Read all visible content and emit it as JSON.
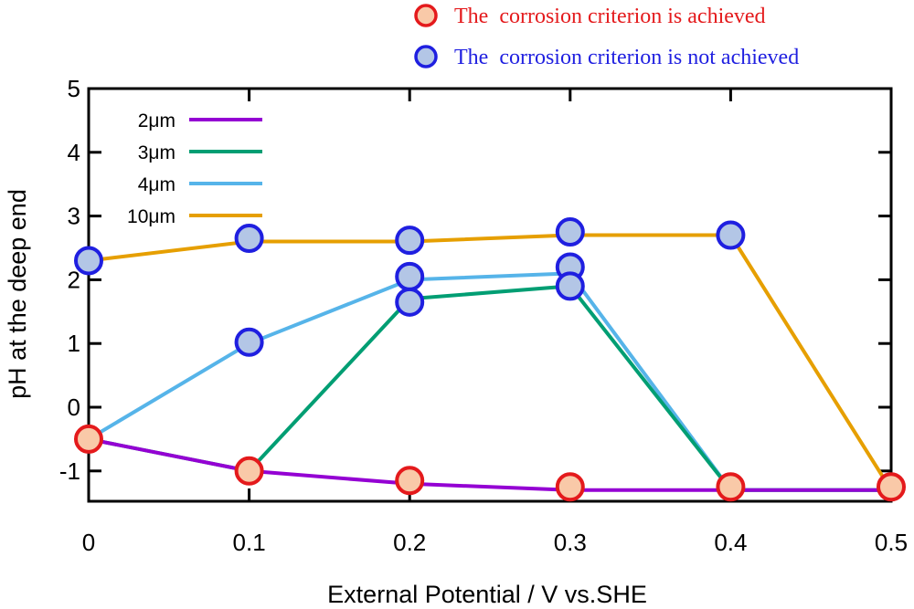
{
  "chart_data": {
    "type": "line",
    "xlabel": "External Potential / V vs.SHE",
    "ylabel": "pH at the deep end",
    "xlim": [
      0,
      0.5
    ],
    "ylim": [
      -1.5,
      5
    ],
    "xticks": [
      "0",
      "0.1",
      "0.2",
      "0.3",
      "0.4",
      "0.5"
    ],
    "yticks": [
      "5",
      "4",
      "3",
      "2",
      "1",
      "0",
      "-1"
    ],
    "series": [
      {
        "name": "2μm",
        "color": "#9400d3",
        "x": [
          0,
          0.1,
          0.2,
          0.3,
          0.4,
          0.5
        ],
        "y": [
          -0.5,
          -1.0,
          -1.2,
          -1.3,
          -1.3,
          -1.3
        ]
      },
      {
        "name": "3μm",
        "color": "#009e73",
        "x": [
          0,
          0.1,
          0.2,
          0.3,
          0.4,
          0.5
        ],
        "y": [
          -0.5,
          -1.0,
          1.7,
          1.9,
          -1.3,
          -1.3
        ]
      },
      {
        "name": "4μm",
        "color": "#56b4e9",
        "x": [
          0,
          0.1,
          0.2,
          0.3,
          0.4,
          0.5
        ],
        "y": [
          -0.5,
          1.0,
          2.0,
          2.1,
          -1.3,
          -1.3
        ]
      },
      {
        "name": "10μm",
        "color": "#e69f00",
        "x": [
          0,
          0.1,
          0.2,
          0.3,
          0.4,
          0.5
        ],
        "y": [
          2.3,
          2.6,
          2.6,
          2.7,
          2.7,
          -1.3
        ]
      }
    ],
    "markers": [
      {
        "x": 0,
        "y": -0.5,
        "status": "achieved"
      },
      {
        "x": 0.1,
        "y": -1.0,
        "status": "achieved"
      },
      {
        "x": 0.2,
        "y": -1.15,
        "status": "achieved"
      },
      {
        "x": 0.3,
        "y": -1.25,
        "status": "achieved"
      },
      {
        "x": 0.4,
        "y": -1.25,
        "status": "achieved"
      },
      {
        "x": 0.5,
        "y": -1.25,
        "status": "achieved"
      },
      {
        "x": 0,
        "y": 2.3,
        "status": "not_achieved"
      },
      {
        "x": 0.1,
        "y": 2.65,
        "status": "not_achieved"
      },
      {
        "x": 0.1,
        "y": 1.02,
        "status": "not_achieved"
      },
      {
        "x": 0.2,
        "y": 2.62,
        "status": "not_achieved"
      },
      {
        "x": 0.2,
        "y": 2.05,
        "status": "not_achieved"
      },
      {
        "x": 0.2,
        "y": 1.65,
        "status": "not_achieved"
      },
      {
        "x": 0.3,
        "y": 2.75,
        "status": "not_achieved"
      },
      {
        "x": 0.3,
        "y": 2.2,
        "status": "not_achieved"
      },
      {
        "x": 0.3,
        "y": 1.9,
        "status": "not_achieved"
      },
      {
        "x": 0.4,
        "y": 2.7,
        "status": "not_achieved"
      }
    ],
    "marker_legend": [
      {
        "status": "achieved",
        "label": "The  corrosion criterion is achieved",
        "fill": "#f9c9a8",
        "stroke": "#e41a1c",
        "text_color": "#e41a1c"
      },
      {
        "status": "not_achieved",
        "label": "The  corrosion criterion is not achieved",
        "fill": "#b3c6e6",
        "stroke": "#1f1fe0",
        "text_color": "#1f1fe0"
      }
    ],
    "legend_position": "top-left",
    "grid": false
  }
}
